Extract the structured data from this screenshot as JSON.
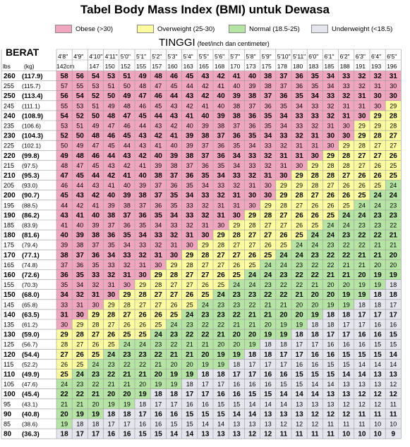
{
  "title": "Tabel Body Mass Index (BMI) untuk Dewasa",
  "legend": [
    {
      "label": "Obese (>30)",
      "color": "#f0a6bf"
    },
    {
      "label": "Overweight (25-30)",
      "color": "#fdfca0"
    },
    {
      "label": "Normal (18.5-25)",
      "color": "#b5e4a4"
    },
    {
      "label": "Underweight (<18.5)",
      "color": "#e5e5ee"
    }
  ],
  "weight_label": "BERAT",
  "height_label": "TINGGI",
  "height_note": "(feet/inch dan centimeter)",
  "chart_data": {
    "type": "heatmap",
    "title": "Tabel Body Mass Index (BMI) untuk Dewasa",
    "xlabel": "TINGGI",
    "ylabel": "BERAT",
    "unit_row_left": "lbs",
    "unit_row_right": "(kg)",
    "height_ft": [
      "4'8\"",
      "4'9\"",
      "4'10\"",
      "4'11\"",
      "5'0\"",
      "5'1\"",
      "5'2\"",
      "5'3\"",
      "5'4\"",
      "5'5\"",
      "5'6\"",
      "5'7\"",
      "5'8\"",
      "5'9\"",
      "5'10\"",
      "5'11\"",
      "6'0\"",
      "6'1\"",
      "6'2\"",
      "6'3\"",
      "6'4\"",
      "6'5\""
    ],
    "height_cm": [
      "142cm",
      "",
      "147",
      "150",
      "152",
      "155",
      "157",
      "160",
      "163",
      "165",
      "168",
      "170",
      "173",
      "175",
      "178",
      "180",
      "183",
      "185",
      "188",
      "191",
      "193",
      "196"
    ],
    "weights_lbs": [
      "260",
      "255",
      "250",
      "245",
      "240",
      "235",
      "230",
      "225",
      "220",
      "215",
      "210",
      "205",
      "200",
      "195",
      "190",
      "185",
      "180",
      "175",
      "170",
      "165",
      "160",
      "155",
      "150",
      "145",
      "140",
      "135",
      "130",
      "125",
      "120",
      "115",
      "110",
      "105",
      "100",
      "95",
      "90",
      "85",
      "80"
    ],
    "weights_kg": [
      "(117.9)",
      "(115.7)",
      "(113.4)",
      "(111.1)",
      "(108.9)",
      "(106.6)",
      "(104.3)",
      "(102.1)",
      "(99.8)",
      "(97.5)",
      "(95.3)",
      "(93.0)",
      "(90.7)",
      "(88.5)",
      "(86.2)",
      "(83.9)",
      "(81.6)",
      "(79.4)",
      "(77.1)",
      "(74.8)",
      "(72.6)",
      "(70.3)",
      "(68.0)",
      "(65.8)",
      "(63.5)",
      "(61.2)",
      "(59.0)",
      "(56.7)",
      "(54.4)",
      "(52.2)",
      "(49.9)",
      "(47.6)",
      "(45.4)",
      "(43.1)",
      "(40.8)",
      "(38.6)",
      "(36.3)"
    ],
    "bmi": [
      [
        58,
        56,
        54,
        53,
        51,
        49,
        48,
        46,
        45,
        43,
        42,
        41,
        40,
        38,
        37,
        36,
        35,
        34,
        33,
        32,
        32,
        31
      ],
      [
        57,
        55,
        53,
        51,
        50,
        48,
        47,
        45,
        44,
        42,
        41,
        40,
        39,
        38,
        37,
        36,
        35,
        34,
        33,
        32,
        31,
        30
      ],
      [
        56,
        54,
        52,
        50,
        49,
        47,
        46,
        44,
        43,
        42,
        40,
        39,
        38,
        37,
        36,
        35,
        34,
        33,
        32,
        31,
        30,
        30
      ],
      [
        55,
        53,
        51,
        49,
        48,
        46,
        45,
        43,
        42,
        41,
        40,
        38,
        37,
        36,
        35,
        34,
        33,
        32,
        31,
        31,
        30,
        29
      ],
      [
        54,
        52,
        50,
        48,
        47,
        45,
        44,
        43,
        41,
        40,
        39,
        38,
        36,
        35,
        34,
        33,
        33,
        32,
        31,
        30,
        29,
        28
      ],
      [
        53,
        51,
        49,
        47,
        46,
        44,
        43,
        42,
        40,
        39,
        38,
        37,
        36,
        35,
        34,
        33,
        32,
        31,
        30,
        29,
        29,
        28
      ],
      [
        52,
        50,
        48,
        46,
        45,
        43,
        42,
        41,
        39,
        38,
        37,
        36,
        35,
        34,
        33,
        32,
        31,
        30,
        30,
        29,
        28,
        27
      ],
      [
        50,
        49,
        47,
        45,
        44,
        43,
        41,
        40,
        39,
        37,
        36,
        35,
        34,
        33,
        32,
        31,
        31,
        30,
        29,
        28,
        27,
        27
      ],
      [
        49,
        48,
        46,
        44,
        43,
        42,
        40,
        39,
        38,
        37,
        36,
        34,
        33,
        32,
        31,
        31,
        30,
        29,
        28,
        27,
        27,
        26
      ],
      [
        48,
        47,
        45,
        43,
        42,
        41,
        39,
        38,
        37,
        36,
        35,
        34,
        33,
        32,
        31,
        30,
        29,
        28,
        28,
        27,
        26,
        25
      ],
      [
        47,
        45,
        44,
        42,
        41,
        40,
        38,
        37,
        36,
        35,
        34,
        33,
        32,
        31,
        30,
        29,
        28,
        28,
        27,
        26,
        26,
        25
      ],
      [
        46,
        44,
        43,
        41,
        40,
        39,
        37,
        36,
        35,
        34,
        33,
        32,
        31,
        30,
        29,
        29,
        28,
        27,
        26,
        26,
        25,
        24
      ],
      [
        45,
        43,
        42,
        40,
        39,
        38,
        37,
        35,
        34,
        33,
        32,
        31,
        30,
        30,
        29,
        28,
        27,
        26,
        26,
        25,
        24,
        24
      ],
      [
        44,
        42,
        41,
        39,
        38,
        37,
        36,
        35,
        33,
        32,
        31,
        31,
        30,
        29,
        28,
        27,
        26,
        26,
        25,
        24,
        24,
        23
      ],
      [
        43,
        41,
        40,
        38,
        37,
        36,
        35,
        34,
        33,
        32,
        31,
        30,
        29,
        28,
        27,
        26,
        26,
        25,
        24,
        24,
        23,
        23
      ],
      [
        41,
        40,
        39,
        37,
        36,
        35,
        34,
        33,
        32,
        31,
        30,
        29,
        28,
        27,
        27,
        26,
        25,
        24,
        24,
        23,
        23,
        22
      ],
      [
        40,
        39,
        38,
        36,
        35,
        34,
        33,
        32,
        31,
        30,
        29,
        28,
        27,
        27,
        26,
        25,
        24,
        24,
        23,
        22,
        22,
        21
      ],
      [
        39,
        38,
        37,
        35,
        34,
        33,
        32,
        31,
        30,
        29,
        28,
        27,
        27,
        26,
        25,
        24,
        24,
        23,
        22,
        22,
        21,
        21
      ],
      [
        38,
        37,
        36,
        34,
        33,
        32,
        31,
        30,
        29,
        28,
        27,
        27,
        26,
        25,
        24,
        24,
        23,
        22,
        22,
        21,
        21,
        20
      ],
      [
        37,
        36,
        35,
        33,
        32,
        31,
        30,
        29,
        28,
        27,
        27,
        26,
        25,
        24,
        24,
        23,
        22,
        22,
        21,
        21,
        20,
        20
      ],
      [
        36,
        35,
        33,
        32,
        31,
        30,
        29,
        28,
        27,
        27,
        26,
        25,
        24,
        24,
        23,
        22,
        22,
        21,
        21,
        20,
        19,
        19
      ],
      [
        35,
        34,
        32,
        31,
        30,
        29,
        28,
        27,
        27,
        26,
        25,
        24,
        24,
        23,
        22,
        22,
        21,
        20,
        20,
        19,
        19,
        18
      ],
      [
        34,
        32,
        31,
        30,
        29,
        28,
        27,
        27,
        26,
        25,
        24,
        23,
        23,
        22,
        22,
        21,
        20,
        20,
        19,
        19,
        18,
        18
      ],
      [
        33,
        31,
        30,
        29,
        28,
        27,
        27,
        26,
        25,
        24,
        23,
        23,
        22,
        21,
        21,
        20,
        20,
        19,
        19,
        18,
        18,
        17
      ],
      [
        31,
        30,
        29,
        28,
        27,
        26,
        26,
        25,
        24,
        23,
        23,
        22,
        21,
        21,
        20,
        20,
        19,
        18,
        18,
        17,
        17,
        17
      ],
      [
        30,
        29,
        28,
        27,
        26,
        26,
        25,
        24,
        23,
        22,
        22,
        21,
        21,
        20,
        19,
        19,
        18,
        18,
        17,
        17,
        16,
        16
      ],
      [
        29,
        28,
        27,
        26,
        25,
        25,
        24,
        23,
        22,
        22,
        21,
        20,
        20,
        19,
        19,
        18,
        18,
        17,
        17,
        16,
        16,
        15
      ],
      [
        28,
        27,
        26,
        25,
        24,
        24,
        23,
        22,
        21,
        21,
        20,
        20,
        19,
        18,
        18,
        17,
        17,
        16,
        16,
        16,
        15,
        15
      ],
      [
        27,
        26,
        25,
        24,
        23,
        23,
        22,
        21,
        21,
        20,
        19,
        19,
        18,
        18,
        17,
        17,
        16,
        16,
        15,
        15,
        15,
        14
      ],
      [
        26,
        25,
        24,
        23,
        22,
        22,
        21,
        20,
        20,
        19,
        19,
        18,
        17,
        17,
        17,
        16,
        16,
        15,
        15,
        14,
        14,
        14
      ],
      [
        25,
        24,
        23,
        22,
        21,
        21,
        20,
        19,
        19,
        18,
        18,
        17,
        17,
        16,
        16,
        15,
        15,
        15,
        14,
        14,
        13,
        13
      ],
      [
        24,
        23,
        22,
        21,
        21,
        20,
        19,
        19,
        18,
        17,
        17,
        16,
        16,
        16,
        15,
        15,
        14,
        14,
        13,
        13,
        13,
        12
      ],
      [
        22,
        22,
        21,
        20,
        20,
        19,
        18,
        18,
        17,
        17,
        16,
        16,
        15,
        15,
        14,
        14,
        14,
        13,
        13,
        12,
        12,
        12
      ],
      [
        21,
        21,
        20,
        19,
        19,
        18,
        17,
        17,
        16,
        16,
        15,
        15,
        14,
        14,
        14,
        13,
        13,
        13,
        12,
        12,
        12,
        11
      ],
      [
        20,
        19,
        19,
        18,
        18,
        17,
        16,
        16,
        15,
        15,
        15,
        14,
        14,
        13,
        13,
        13,
        12,
        12,
        12,
        11,
        11,
        11
      ],
      [
        19,
        18,
        18,
        17,
        17,
        16,
        16,
        15,
        15,
        14,
        14,
        13,
        13,
        13,
        12,
        12,
        12,
        11,
        11,
        11,
        10,
        10
      ],
      [
        18,
        17,
        17,
        16,
        16,
        15,
        15,
        14,
        14,
        13,
        13,
        13,
        12,
        12,
        11,
        11,
        11,
        11,
        10,
        10,
        10,
        9
      ]
    ],
    "categories": [
      {
        "label": "Obese (>30)",
        "min": 30
      },
      {
        "label": "Overweight (25-30)",
        "min": 25
      },
      {
        "label": "Normal (18.5-25)",
        "min": 19
      },
      {
        "label": "Underweight (<18.5)",
        "min": 0
      }
    ]
  }
}
